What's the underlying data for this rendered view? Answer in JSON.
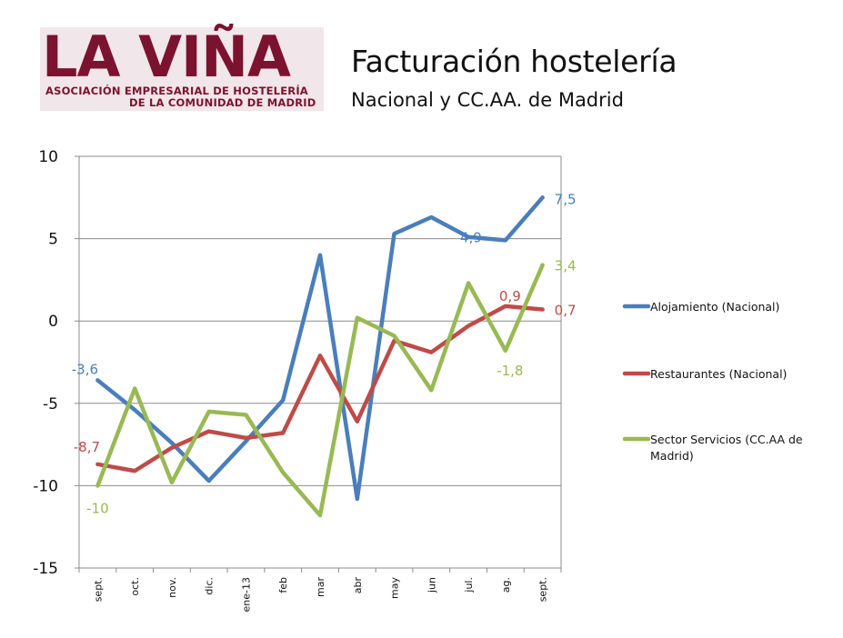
{
  "logo": {
    "word": "LA VIÑA",
    "line1": "ASOCIACIÓN EMPRESARIAL DE HOSTELERÍA",
    "line2": "DE LA COMUNIDAD DE MADRID"
  },
  "header": {
    "title": "Facturación hostelería",
    "subtitle": "Nacional y CC.AA. de Madrid"
  },
  "chart_data": {
    "type": "line",
    "title": "Facturación hostelería",
    "subtitle": "Nacional y CC.AA. de Madrid",
    "xlabel": "",
    "ylabel": "",
    "ylim": [
      -15,
      10
    ],
    "yticks": [
      10,
      5,
      0,
      -5,
      -10,
      -15
    ],
    "ytick_labels": [
      "10",
      "5",
      "0",
      "-5",
      "-10",
      "-15"
    ],
    "grid": "horizontal",
    "legend_position": "right",
    "categories": [
      "sept.",
      "oct.",
      "nov.",
      "dic.",
      "ene-13",
      "feb",
      "mar",
      "abr",
      "may",
      "jun",
      "jul.",
      "ag.",
      "sept."
    ],
    "series": [
      {
        "name": "Alojamiento (Nacional)",
        "color": "#4a7ebb",
        "values": [
          -3.6,
          -5.4,
          -7.4,
          -9.7,
          -7.3,
          -4.8,
          4.0,
          -10.8,
          5.3,
          6.3,
          5.1,
          4.9,
          7.5
        ],
        "data_labels": [
          {
            "index": 0,
            "text": "-3,6"
          },
          {
            "index": 11,
            "text": "4,9"
          },
          {
            "index": 12,
            "text": "7,5"
          }
        ]
      },
      {
        "name": "Restaurantes (Nacional)",
        "color": "#be4b48",
        "values": [
          -8.7,
          -9.1,
          -7.7,
          -6.7,
          -7.1,
          -6.8,
          -2.1,
          -6.1,
          -1.2,
          -1.9,
          -0.3,
          0.9,
          0.7
        ],
        "data_labels": [
          {
            "index": 0,
            "text": "-8,7"
          },
          {
            "index": 11,
            "text": "0,9"
          },
          {
            "index": 12,
            "text": "0,7"
          }
        ]
      },
      {
        "name": "Sector Servicios (CC.AA de Madrid)",
        "color": "#98b954",
        "values": [
          -10.0,
          -4.1,
          -9.8,
          -5.5,
          -5.7,
          -9.2,
          -11.8,
          0.2,
          -0.9,
          -4.2,
          2.3,
          -1.8,
          3.4
        ],
        "data_labels": [
          {
            "index": 0,
            "text": "-10"
          },
          {
            "index": 11,
            "text": "-1,8"
          },
          {
            "index": 12,
            "text": "3,4"
          }
        ]
      }
    ]
  }
}
